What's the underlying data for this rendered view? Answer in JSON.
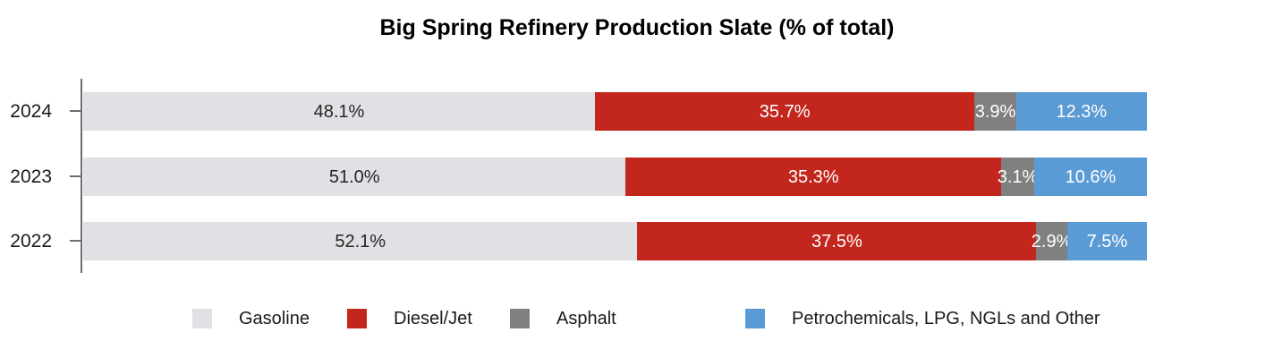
{
  "title": "Big Spring Refinery Production Slate (% of total)",
  "chart_data": {
    "type": "bar",
    "orientation": "horizontal",
    "stacked": true,
    "grid": false,
    "legend_position": "bottom",
    "value_suffix": "%",
    "xlim": [
      0,
      100
    ],
    "categories": [
      "2024",
      "2023",
      "2022"
    ],
    "series": [
      {
        "name": "Gasoline",
        "color": "#e1e1e5",
        "label_color": "#262626",
        "values": [
          48.1,
          51.0,
          52.1
        ]
      },
      {
        "name": "Diesel/Jet",
        "color": "#c3261d",
        "label_color": "#ffffff",
        "values": [
          35.7,
          35.3,
          37.5
        ]
      },
      {
        "name": "Asphalt",
        "color": "#808080",
        "label_color": "#ffffff",
        "values": [
          3.9,
          3.1,
          2.9
        ]
      },
      {
        "name": "Petrochemicals, LPG, NGLs and Other",
        "color": "#5b9bd5",
        "label_color": "#ffffff",
        "values": [
          12.3,
          10.6,
          7.5
        ]
      }
    ],
    "data_labels": [
      [
        "48.1%",
        "35.7%",
        "3.9%",
        "12.3%"
      ],
      [
        "51.0%",
        "35.3%",
        "3.1%",
        "10.6%"
      ],
      [
        "52.1%",
        "37.5%",
        "2.9%",
        "7.5%"
      ]
    ],
    "axis_color": "#6d6d6d"
  },
  "legend": {
    "items": [
      {
        "label": "Gasoline",
        "color": "#e1e1e5"
      },
      {
        "label": "Diesel/Jet",
        "color": "#c3261d"
      },
      {
        "label": "Asphalt",
        "color": "#808080"
      },
      {
        "label": "Petrochemicals, LPG, NGLs and Other",
        "color": "#5b9bd5"
      }
    ]
  }
}
